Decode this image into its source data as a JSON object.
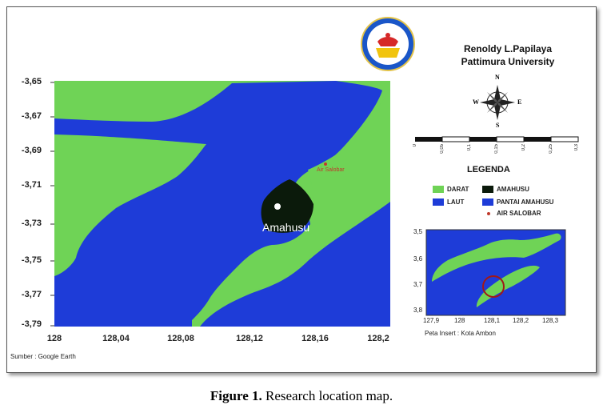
{
  "map": {
    "y_ticks": [
      "-3,65",
      "-3,67",
      "-3,69",
      "-3,71",
      "-3,73",
      "-3,75",
      "-3,77",
      "-3,79"
    ],
    "x_ticks": [
      "128",
      "128,04",
      "128,08",
      "128,12",
      "128,16",
      "128,2"
    ],
    "place_labels": {
      "amahusu": "Amahusu",
      "air_salobar": "Air Salobar"
    },
    "source": "Sumber : Google Earth",
    "colors": {
      "land": "#6fd356",
      "sea": "#1e3cd8",
      "amahusu": "#0b1a0b",
      "salobar": "#c0392b"
    }
  },
  "author": {
    "name": "Renoldy L.Papilaya",
    "institution": "Pattimura University"
  },
  "compass": {
    "n": "N",
    "s": "S",
    "e": "E",
    "w": "W"
  },
  "scale_bar": {
    "labels": [
      "0",
      "0,05",
      "0,1",
      "0,15",
      "0,2",
      "0,25",
      "0,3"
    ]
  },
  "legend": {
    "title": "LEGENDA",
    "items": [
      {
        "label": "DARAT",
        "color": "#6fd356"
      },
      {
        "label": "AMAHUSU",
        "color": "#0b1a0b"
      },
      {
        "label": "LAUT",
        "color": "#1e3cd8"
      },
      {
        "label": "PANTAI AMAHUSU",
        "color": "#1e3cd8"
      },
      {
        "label": "AIR SALOBAR",
        "color": "#c0392b"
      }
    ]
  },
  "inset": {
    "y_ticks": [
      "3,5",
      "3,6",
      "3,7",
      "3,8"
    ],
    "x_ticks": [
      "127,9",
      "128",
      "128,1",
      "128,2",
      "128,3"
    ],
    "caption": "Peta Insert :  Kota Ambon"
  },
  "caption": {
    "label": "Figure 1.",
    "text": " Research location map."
  }
}
